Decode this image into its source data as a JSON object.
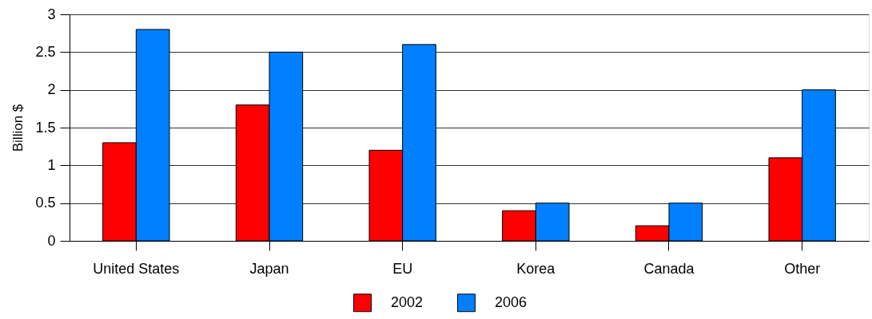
{
  "chart_data": {
    "type": "bar",
    "ylabel": "Billion $",
    "categories": [
      "United States",
      "Japan",
      "EU",
      "Korea",
      "Canada",
      "Other"
    ],
    "series": [
      {
        "name": "2002",
        "color": "#ff0000",
        "values": [
          1.3,
          1.8,
          1.2,
          0.4,
          0.2,
          1.1
        ]
      },
      {
        "name": "2006",
        "color": "#0080ff",
        "values": [
          2.8,
          2.5,
          2.6,
          0.5,
          0.5,
          2.0
        ]
      }
    ],
    "ylim": [
      0,
      3
    ],
    "yticks": [
      0,
      0.5,
      1,
      1.5,
      2,
      2.5,
      3
    ],
    "grid": "y",
    "legend": "bottom"
  }
}
